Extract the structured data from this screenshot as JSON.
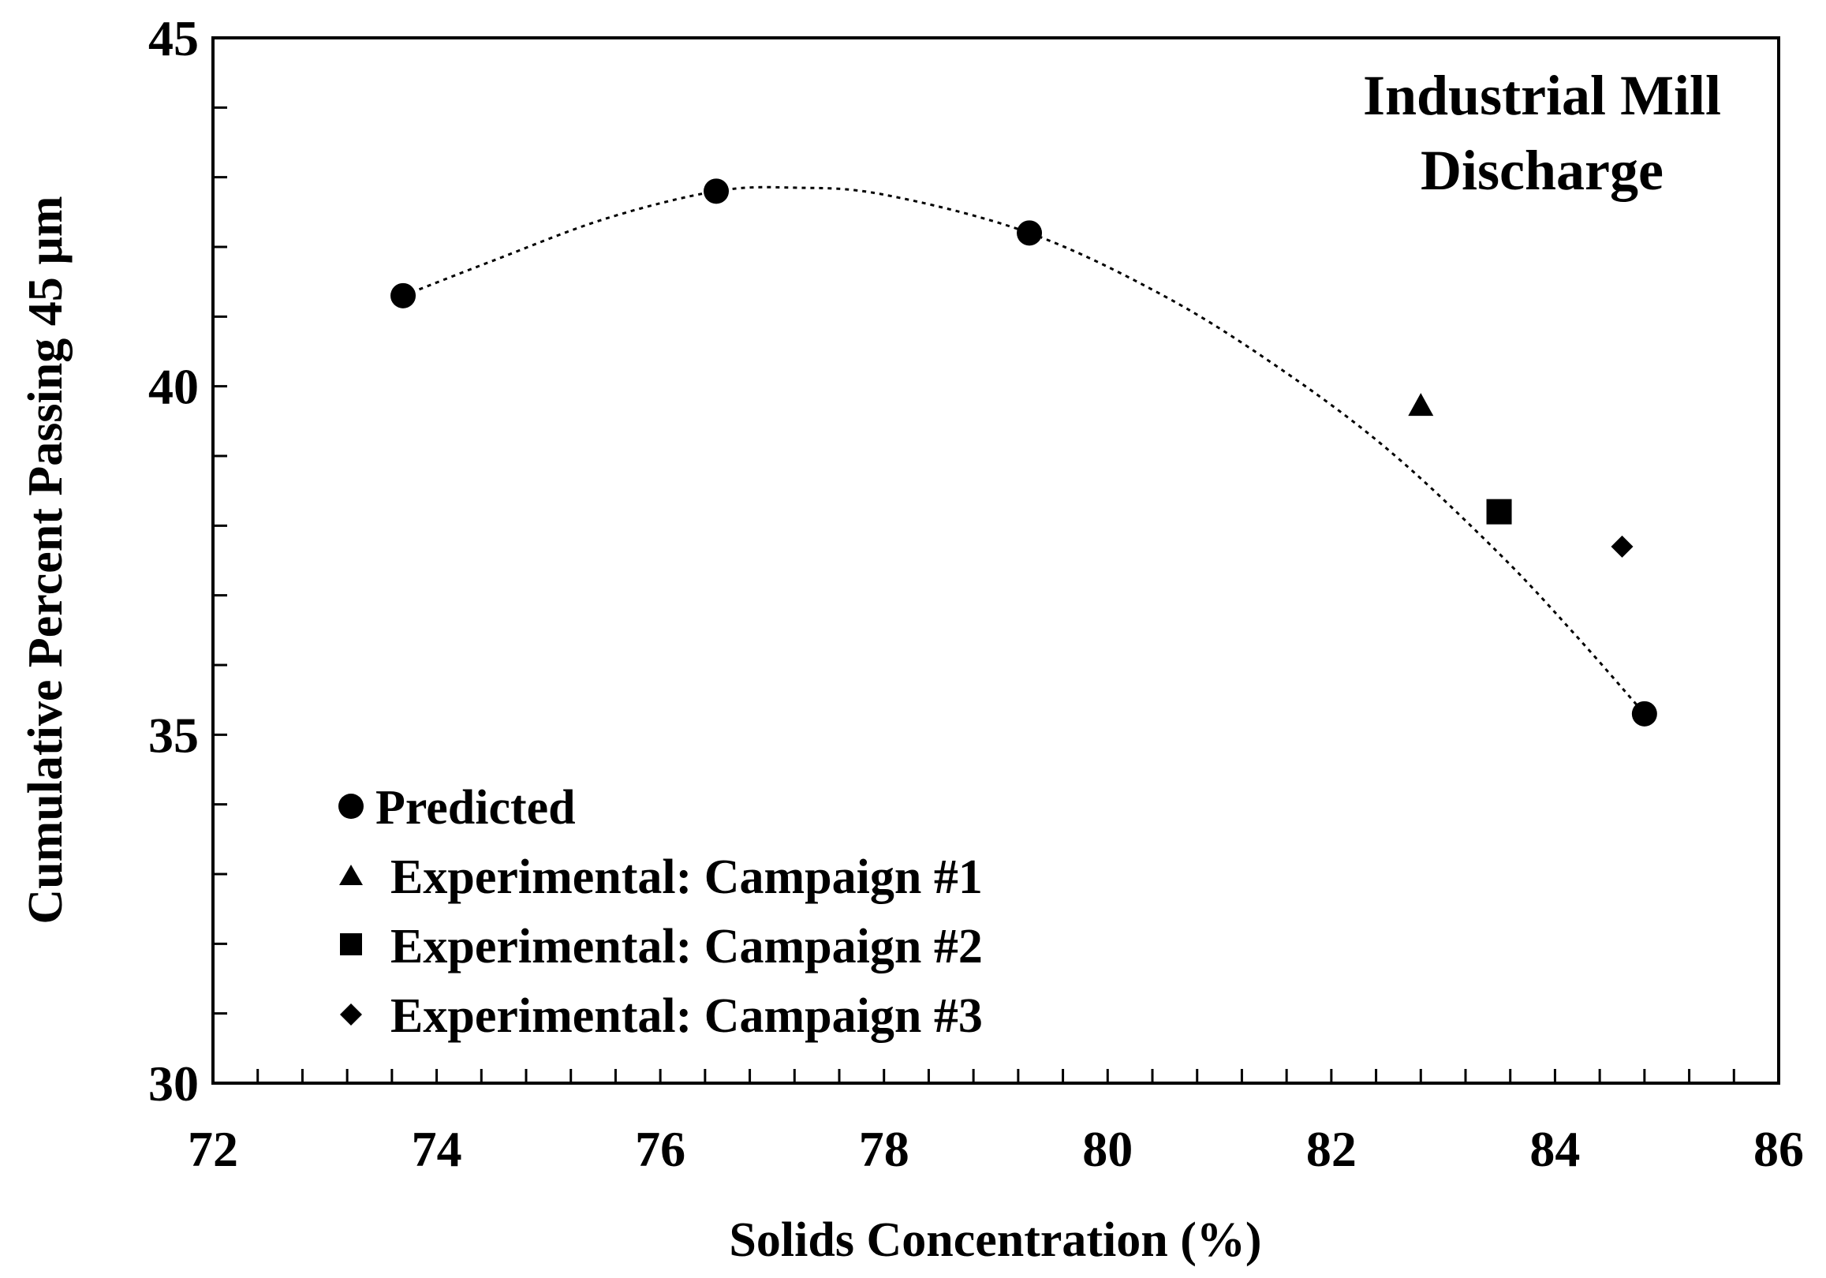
{
  "chart_data": {
    "type": "scatter",
    "title": "",
    "annotation": [
      "Industrial Mill",
      "Discharge"
    ],
    "xlabel": "Solids Concentration (%)",
    "ylabel": "Cumulative Percent Passing 45 µm",
    "xlim": [
      72,
      86
    ],
    "ylim": [
      30,
      45
    ],
    "x_ticks": [
      72,
      74,
      76,
      78,
      80,
      82,
      84,
      86
    ],
    "y_ticks": [
      30,
      35,
      40,
      45
    ],
    "x_minor_step": 0.4,
    "y_minor_step": 1,
    "grid": false,
    "legend_position": "bottom-left",
    "series": [
      {
        "name": "Predicted",
        "marker": "circle",
        "x": [
          73.7,
          76.5,
          79.3,
          84.8
        ],
        "y": [
          41.3,
          42.8,
          42.2,
          35.3
        ]
      },
      {
        "name": "Experimental: Campaign #1",
        "marker": "triangle",
        "x": [
          82.8
        ],
        "y": [
          39.7
        ]
      },
      {
        "name": "Experimental: Campaign #2",
        "marker": "square",
        "x": [
          83.5
        ],
        "y": [
          38.2
        ]
      },
      {
        "name": "Experimental: Campaign #3",
        "marker": "diamond",
        "x": [
          84.6
        ],
        "y": [
          37.7
        ]
      }
    ],
    "fit_curve": {
      "style": "dotted",
      "x": [
        73.7,
        74.5,
        75.5,
        76.5,
        77.2,
        78.0,
        79.3,
        80.5,
        81.5,
        82.5,
        83.5,
        84.2,
        84.8
      ],
      "y": [
        41.3,
        41.8,
        42.4,
        42.8,
        42.85,
        42.75,
        42.2,
        41.3,
        40.3,
        39.1,
        37.6,
        36.4,
        35.3
      ]
    },
    "colors": {
      "marker": "#000000",
      "axis": "#000000",
      "background": "#ffffff"
    }
  }
}
